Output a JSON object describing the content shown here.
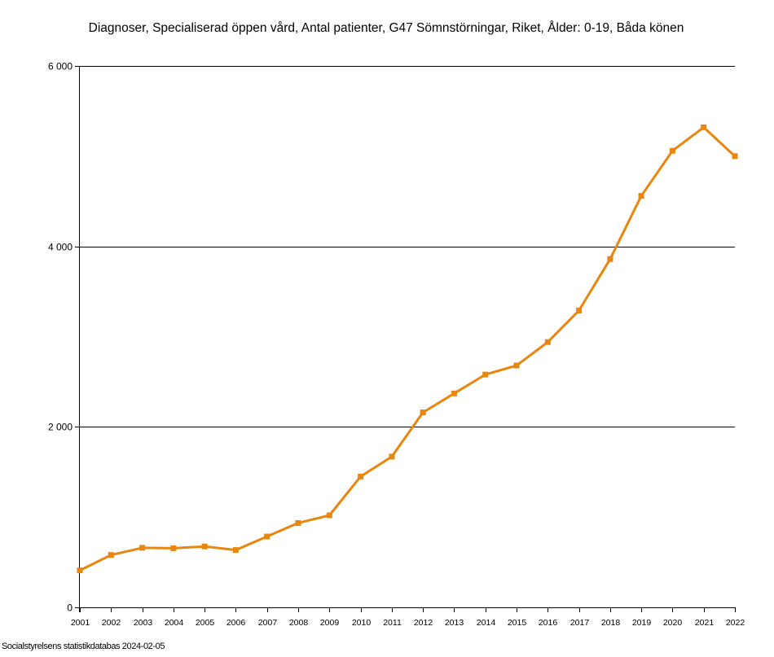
{
  "chart_data": {
    "type": "line",
    "title": "Diagnoser, Specialiserad öppen vård, Antal patienter, G47 Sömnstörningar, Riket, Ålder: 0-19, Båda könen",
    "xlabel": "",
    "ylabel": "",
    "categories": [
      "2001",
      "2002",
      "2003",
      "2004",
      "2005",
      "2006",
      "2007",
      "2008",
      "2009",
      "2010",
      "2011",
      "2012",
      "2013",
      "2014",
      "2015",
      "2016",
      "2017",
      "2018",
      "2019",
      "2020",
      "2021",
      "2022"
    ],
    "series": [
      {
        "values": [
          410,
          580,
          660,
          655,
          675,
          635,
          785,
          935,
          1020,
          1450,
          1670,
          2160,
          2370,
          2580,
          2680,
          2940,
          3290,
          3860,
          4560,
          5060,
          5320,
          5000
        ]
      }
    ],
    "ylim": [
      0,
      6000
    ],
    "yticks": [
      0,
      2000,
      4000,
      6000
    ],
    "ytick_labels": [
      "0",
      "2 000",
      "4 000",
      "6 000"
    ],
    "grid": true,
    "legend": "none",
    "colors": {
      "line": "#e8860e",
      "marker": "#e8860e",
      "grid": "#000000"
    }
  },
  "source": "Socialstyrelsens statistikdatabas 2024-02-05"
}
